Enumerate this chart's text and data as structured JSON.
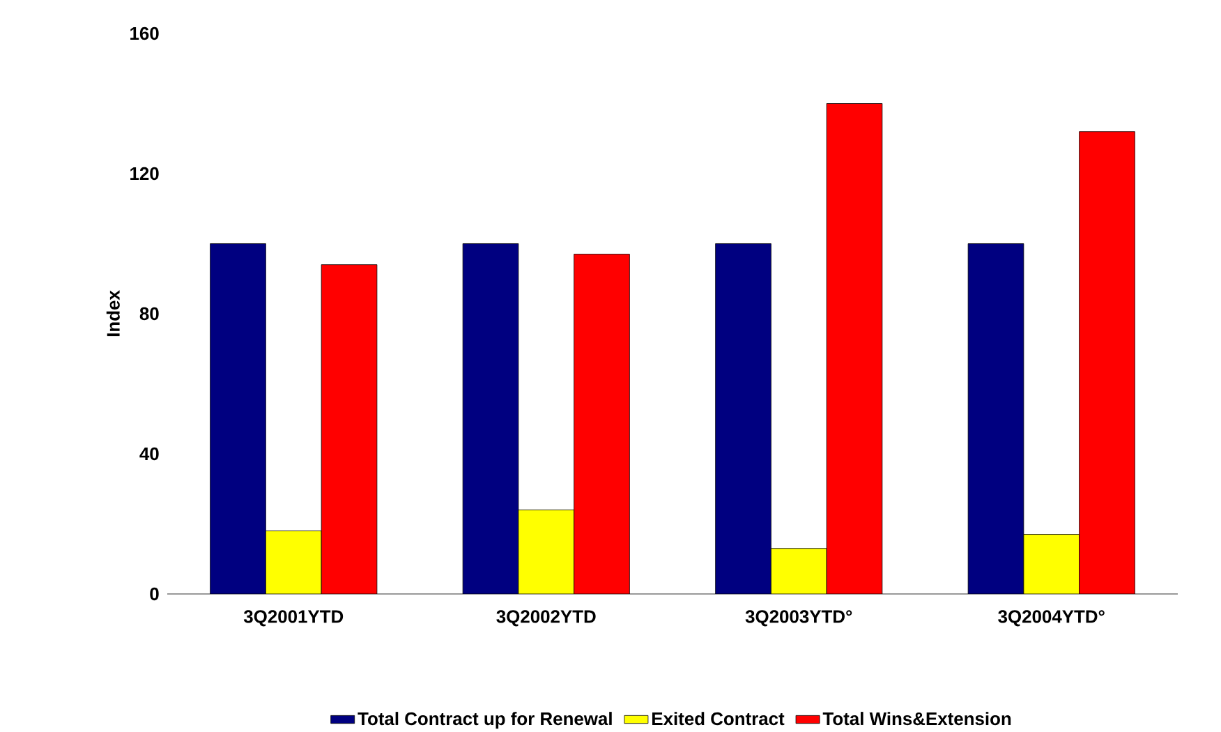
{
  "chart_data": {
    "type": "bar",
    "ylabel": "Index",
    "categories": [
      "3Q2001YTD",
      "3Q2002YTD",
      "3Q2003YTD°",
      "3Q2004YTD°"
    ],
    "series": [
      {
        "name": "Total Contract up for Renewal",
        "color": "#000080",
        "values": [
          100,
          100,
          100,
          100
        ]
      },
      {
        "name": "Exited Contract",
        "color": "#ffff00",
        "values": [
          18,
          24,
          13,
          17
        ]
      },
      {
        "name": "Total Wins&Extension",
        "color": "#ff0000",
        "values": [
          94,
          97,
          140,
          132
        ]
      }
    ],
    "ylim": [
      0,
      160
    ],
    "yticks": [
      0,
      40,
      80,
      120,
      160
    ],
    "legend": "bottom"
  }
}
